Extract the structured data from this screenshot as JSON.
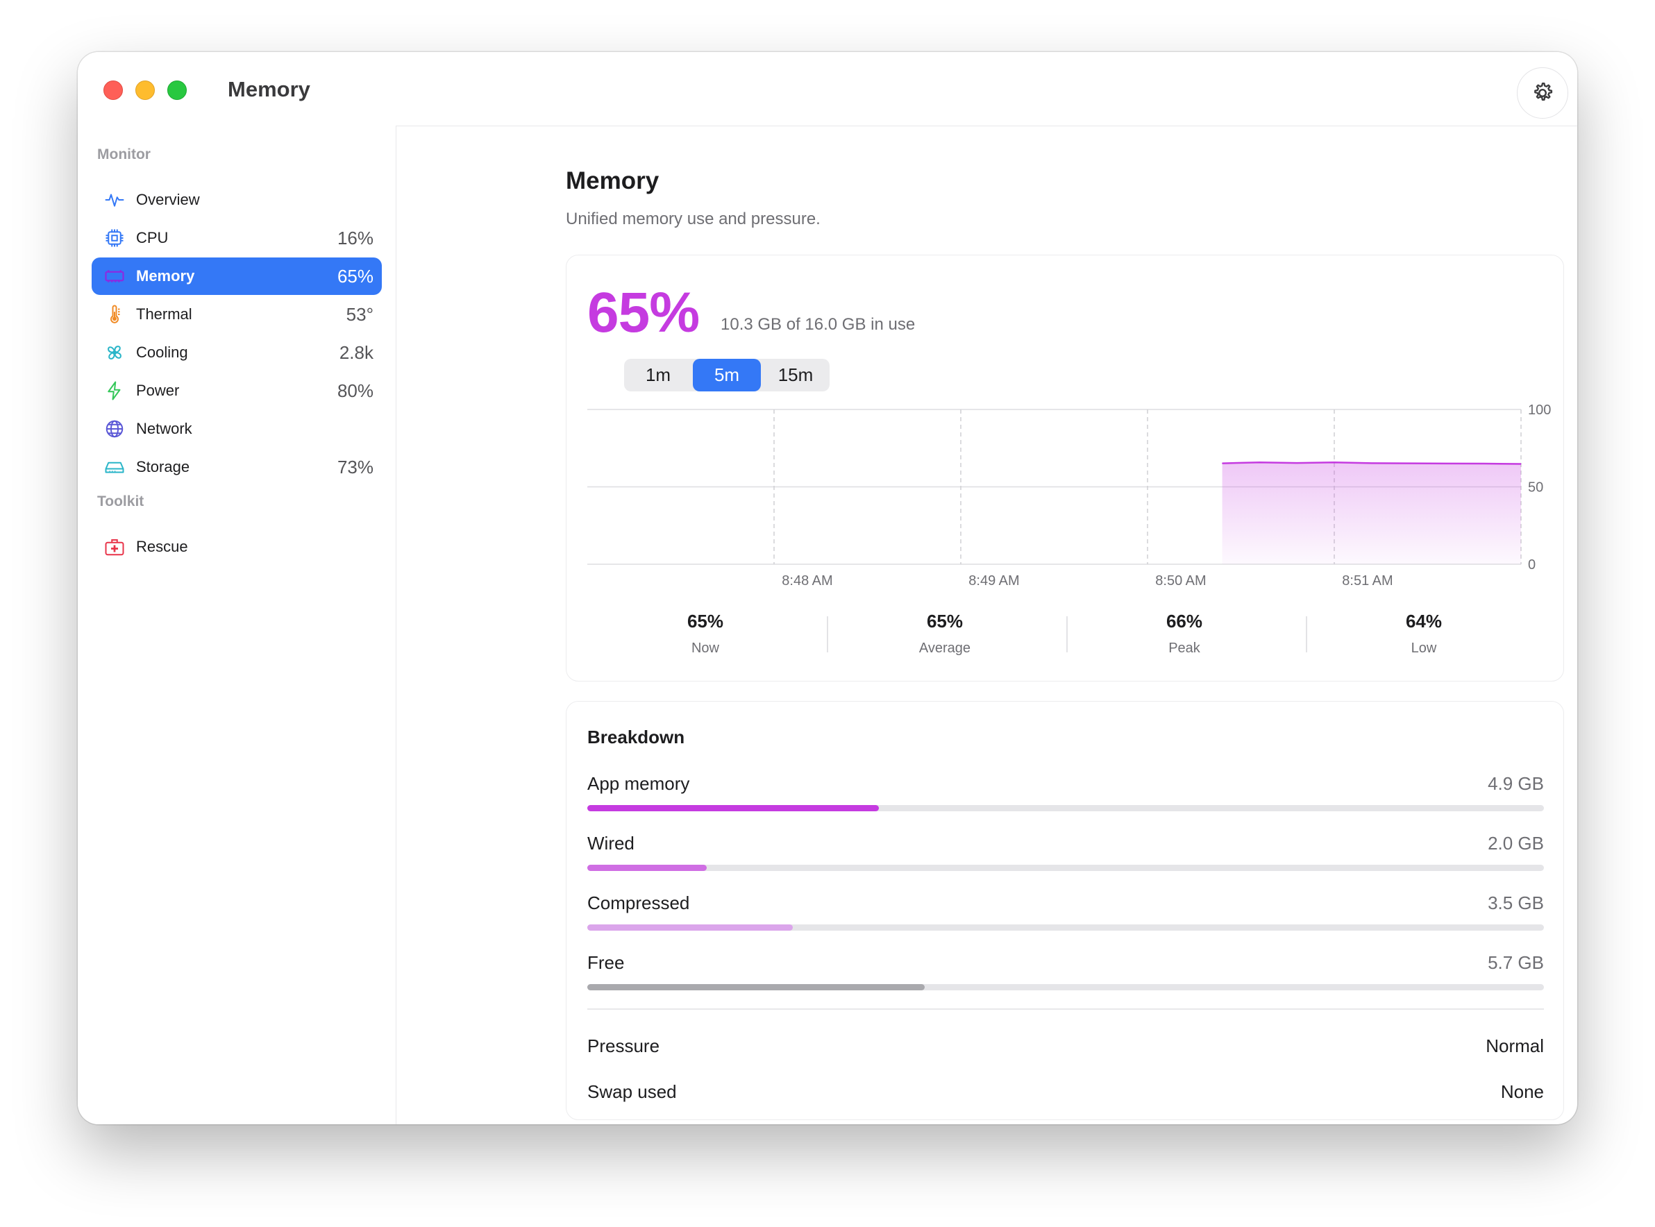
{
  "window": {
    "title": "Memory"
  },
  "sidebar": {
    "sections": [
      {
        "label": "Monitor"
      },
      {
        "label": "Toolkit"
      }
    ],
    "items": [
      {
        "label": "Overview",
        "value": "",
        "icon": "waveform-icon",
        "color": "#3478f6"
      },
      {
        "label": "CPU",
        "value": "16%",
        "icon": "cpu-icon",
        "color": "#3478f6"
      },
      {
        "label": "Memory",
        "value": "65%",
        "icon": "memorychip-icon",
        "color": "#a23be0",
        "active": true
      },
      {
        "label": "Thermal",
        "value": "53°",
        "icon": "thermometer-icon",
        "color": "#f08a24"
      },
      {
        "label": "Cooling",
        "value": "2.8k",
        "icon": "fan-icon",
        "color": "#2ab5c8"
      },
      {
        "label": "Power",
        "value": "80%",
        "icon": "bolt-icon",
        "color": "#34c759"
      },
      {
        "label": "Network",
        "value": "",
        "icon": "globe-icon",
        "color": "#5a57d6"
      },
      {
        "label": "Storage",
        "value": "73%",
        "icon": "drive-icon",
        "color": "#2ab5c8"
      },
      {
        "label": "Rescue",
        "value": "",
        "icon": "first-aid-kit-icon",
        "color": "#e8344a"
      }
    ]
  },
  "main": {
    "title": "Memory",
    "subtitle": "Unified memory use and pressure.",
    "usage": {
      "percent": "65%",
      "detail": "10.3 GB of 16.0 GB in use",
      "ranges": [
        "1m",
        "5m",
        "15m"
      ],
      "selected_range": "5m"
    },
    "stats": [
      {
        "value": "65%",
        "label": "Now"
      },
      {
        "value": "65%",
        "label": "Average"
      },
      {
        "value": "66%",
        "label": "Peak"
      },
      {
        "value": "64%",
        "label": "Low"
      }
    ],
    "breakdown": {
      "title": "Breakdown",
      "rows": [
        {
          "name": "App memory",
          "amount": "4.9 GB",
          "fraction": 0.305,
          "color": "#c53be0"
        },
        {
          "name": "Wired",
          "amount": "2.0 GB",
          "fraction": 0.125,
          "color": "#cf6ee3"
        },
        {
          "name": "Compressed",
          "amount": "3.5 GB",
          "fraction": 0.215,
          "color": "#dba5eb"
        },
        {
          "name": "Free",
          "amount": "5.7 GB",
          "fraction": 0.353,
          "color": "#a9a9ad"
        }
      ],
      "details": [
        {
          "key": "Pressure",
          "value": "Normal"
        },
        {
          "key": "Swap used",
          "value": "None"
        }
      ]
    }
  },
  "chart_data": {
    "type": "area",
    "x_tick_labels": [
      "8:48 AM",
      "8:49 AM",
      "8:50 AM",
      "8:51 AM"
    ],
    "y_tick_labels": [
      "100",
      "50",
      "0"
    ],
    "ylim": [
      0,
      100
    ],
    "color": "#c53be0",
    "x_range_minutes": [
      0,
      5
    ],
    "x": [
      3.4,
      3.6,
      3.8,
      4.0,
      4.2,
      4.4,
      4.6,
      4.8,
      5.0
    ],
    "values": [
      65.2,
      65.8,
      65.4,
      65.8,
      65.3,
      65.2,
      65.1,
      65.0,
      64.8
    ],
    "grid": true
  }
}
